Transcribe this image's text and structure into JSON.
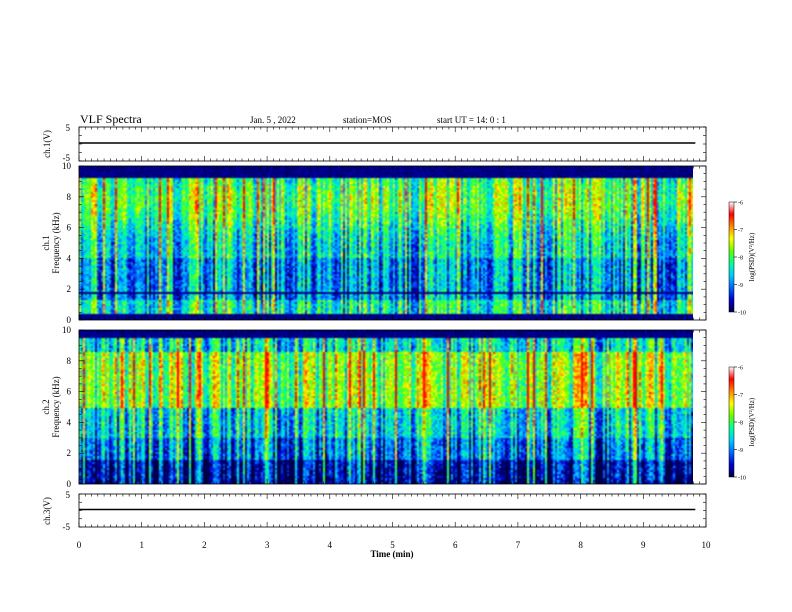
{
  "header": {
    "title": "VLF Spectra",
    "date": "Jan. 5  , 2022",
    "station": "station=MOS",
    "start": "start  UT =   14: 0  : 1"
  },
  "chart_data": {
    "type": "heatmap",
    "x_axis": {
      "label": "Time  (min)",
      "range": [
        0,
        10
      ],
      "ticks": [
        "0",
        "1",
        "2",
        "3",
        "4",
        "5",
        "6",
        "7",
        "8",
        "9",
        "10"
      ],
      "data_end": 9.83
    },
    "panels": [
      {
        "id": "ch1-voltage",
        "ylabel": "ch.1(V)",
        "ylim": [
          -5,
          5
        ],
        "yticks": [
          "5",
          "-5"
        ],
        "trace_level": 0
      },
      {
        "id": "ch1-spectrogram",
        "ylabel_channel": "ch.1",
        "ylabel": "Frequency (kHz)",
        "ylim": [
          0,
          10
        ],
        "yticks": [
          "0",
          "2",
          "4",
          "6",
          "8",
          "10"
        ],
        "colorbar": {
          "label": "log(PSD)(V²/Hz)",
          "range": [
            -10,
            -6
          ],
          "ticks": [
            "-6",
            "-7",
            "-8",
            "-9",
            "-10"
          ]
        }
      },
      {
        "id": "ch2-spectrogram",
        "ylabel_channel": "ch.2",
        "ylabel": "Frequency (kHz)",
        "ylim": [
          0,
          10
        ],
        "yticks": [
          "0",
          "2",
          "4",
          "6",
          "8",
          "10"
        ],
        "colorbar": {
          "label": "log(PSD)(V²/Hz)",
          "range": [
            -10,
            -6
          ],
          "ticks": [
            "-6",
            "-7",
            "-8",
            "-9",
            "-10"
          ]
        }
      },
      {
        "id": "ch3-voltage",
        "ylabel": "ch.3(V)",
        "ylim": [
          -5,
          5
        ],
        "yticks": [
          "5",
          "-5"
        ],
        "trace_level": 0
      }
    ],
    "colormap": [
      "#000044",
      "#0000cc",
      "#0066ff",
      "#00ccff",
      "#00ff99",
      "#66ff00",
      "#ffff00",
      "#ff8800",
      "#ff0000",
      "#ffffff"
    ]
  }
}
